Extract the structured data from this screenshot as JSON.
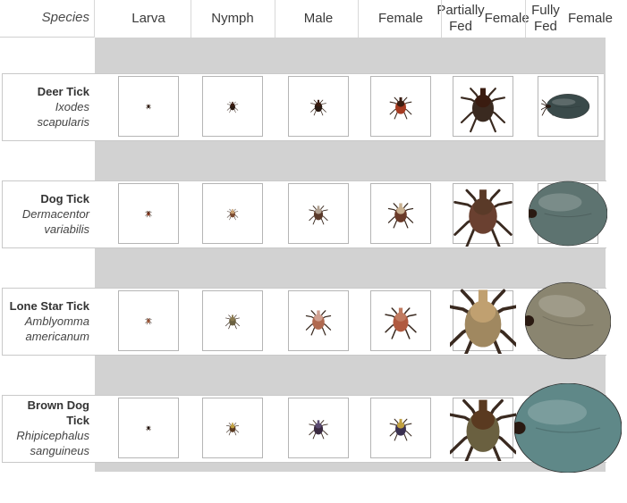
{
  "header": {
    "species_label": "Species",
    "columns": [
      {
        "line1": "Larva",
        "line2": ""
      },
      {
        "line1": "Nymph",
        "line2": ""
      },
      {
        "line1": "Male",
        "line2": ""
      },
      {
        "line1": "Female",
        "line2": ""
      },
      {
        "line1": "Partially Fed",
        "line2": "Female"
      },
      {
        "line1": "Fully Fed",
        "line2": "Female"
      }
    ]
  },
  "rows": [
    {
      "common_lines": [
        "Deer Tick"
      ],
      "scientific_lines": [
        "Ixodes",
        "scapularis"
      ]
    },
    {
      "common_lines": [
        "Dog Tick"
      ],
      "scientific_lines": [
        "Dermacentor",
        "variabilis"
      ]
    },
    {
      "common_lines": [
        "Lone Star Tick"
      ],
      "scientific_lines": [
        "Amblyomma",
        "americanum"
      ]
    },
    {
      "common_lines": [
        "Brown Dog",
        "Tick"
      ],
      "scientific_lines": [
        "Rhipicephalus",
        "sanguineus"
      ]
    }
  ],
  "colors": {
    "band_gray": "#d2d2d2",
    "cell_border": "#b5b5b5",
    "deer_body": "#2a1a12",
    "deer_scutum": "#3a1c10",
    "dog_body": "#7a4a30",
    "lonestar_body": "#a05a3a",
    "brown_body": "#5a3a22",
    "engorged_deer": "#3a4a4a",
    "engorged_dog": "#5d7370",
    "engorged_lonestar": "#8a8570",
    "engorged_brown": "#5f8888"
  }
}
